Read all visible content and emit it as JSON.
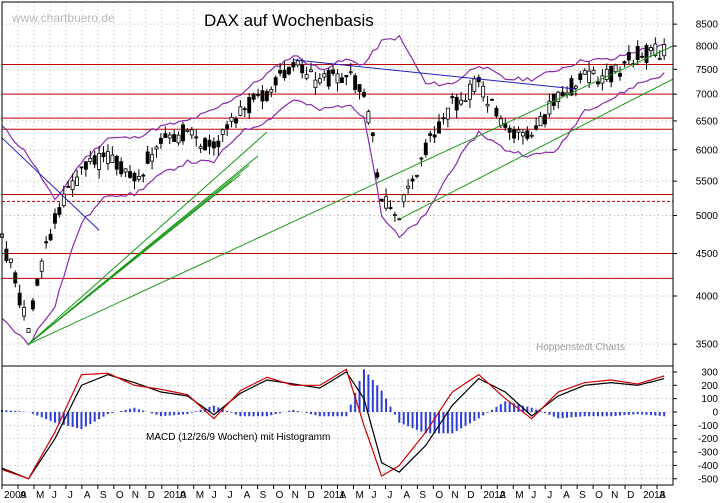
{
  "watermark": "www.chartbuero.de",
  "credit": "Hoppenstedt Charts",
  "chart_data": [
    {
      "type": "candlestick",
      "title": "DAX auf Wochenbasis",
      "y_axis_side": "right",
      "ylim": [
        3300,
        8800
      ],
      "y_ticks": [
        3500,
        4000,
        4500,
        5000,
        5500,
        6000,
        6500,
        7000,
        7500,
        8000,
        8500
      ],
      "y_tick_labels": [
        "3500",
        "4000",
        "4500",
        "5000",
        "5500",
        "6000",
        "6500",
        "7000",
        "7500",
        "8000",
        "8500"
      ],
      "x_labels": [
        "2009",
        "A",
        "M",
        "J",
        "J",
        "A",
        "S",
        "O",
        "N",
        "D",
        "2010",
        "A",
        "M",
        "J",
        "J",
        "A",
        "S",
        "O",
        "N",
        "D",
        "2011",
        "A",
        "M",
        "J",
        "J",
        "A",
        "S",
        "O",
        "N",
        "D",
        "2012",
        "A",
        "M",
        "J",
        "J",
        "A",
        "S",
        "O",
        "N",
        "D",
        "2013",
        "A"
      ],
      "price_path": [
        [
          0,
          4700
        ],
        [
          6,
          3650
        ],
        [
          12,
          5000
        ],
        [
          18,
          5650
        ],
        [
          24,
          5900
        ],
        [
          30,
          5500
        ],
        [
          36,
          6150
        ],
        [
          42,
          6300
        ],
        [
          48,
          6000
        ],
        [
          54,
          6700
        ],
        [
          60,
          7000
        ],
        [
          66,
          7600
        ],
        [
          72,
          7250
        ],
        [
          78,
          7400
        ],
        [
          82,
          7100
        ],
        [
          86,
          5200
        ],
        [
          90,
          5000
        ],
        [
          96,
          6000
        ],
        [
          102,
          6800
        ],
        [
          108,
          7200
        ],
        [
          114,
          6300
        ],
        [
          120,
          6200
        ],
        [
          126,
          7000
        ],
        [
          132,
          7300
        ],
        [
          138,
          7400
        ],
        [
          144,
          7800
        ],
        [
          150,
          7900
        ]
      ],
      "bollinger_upper_path": [
        [
          0,
          6400
        ],
        [
          6,
          5900
        ],
        [
          12,
          5200
        ],
        [
          18,
          5800
        ],
        [
          24,
          6200
        ],
        [
          30,
          6200
        ],
        [
          36,
          6400
        ],
        [
          42,
          6500
        ],
        [
          48,
          6700
        ],
        [
          54,
          7000
        ],
        [
          60,
          7400
        ],
        [
          66,
          7800
        ],
        [
          72,
          7500
        ],
        [
          78,
          7700
        ],
        [
          82,
          7600
        ],
        [
          86,
          8100
        ],
        [
          90,
          8200
        ],
        [
          96,
          7200
        ],
        [
          102,
          7200
        ],
        [
          108,
          7600
        ],
        [
          114,
          7300
        ],
        [
          120,
          7300
        ],
        [
          126,
          7500
        ],
        [
          132,
          7700
        ],
        [
          138,
          7700
        ],
        [
          144,
          7900
        ],
        [
          150,
          8000
        ]
      ],
      "bollinger_lower_path": [
        [
          0,
          3750
        ],
        [
          6,
          3500
        ],
        [
          12,
          3900
        ],
        [
          18,
          4900
        ],
        [
          24,
          5300
        ],
        [
          30,
          5300
        ],
        [
          36,
          5600
        ],
        [
          42,
          5800
        ],
        [
          48,
          5800
        ],
        [
          54,
          6300
        ],
        [
          60,
          6500
        ],
        [
          66,
          6900
        ],
        [
          72,
          6700
        ],
        [
          78,
          6800
        ],
        [
          82,
          6600
        ],
        [
          86,
          5000
        ],
        [
          90,
          4700
        ],
        [
          96,
          5000
        ],
        [
          102,
          5700
        ],
        [
          108,
          6300
        ],
        [
          114,
          6000
        ],
        [
          120,
          5900
        ],
        [
          126,
          6000
        ],
        [
          132,
          6700
        ],
        [
          138,
          6900
        ],
        [
          144,
          7200
        ],
        [
          150,
          7400
        ]
      ],
      "horizontal_lines": [
        7600,
        7000,
        6550,
        6350,
        5300,
        4500,
        4200
      ],
      "dashed_horizontal_lines": [
        5200
      ],
      "trend_lines_green": [
        [
          [
            6,
            3500
          ],
          [
            152,
            8000
          ]
        ],
        [
          [
            6,
            3500
          ],
          [
            60,
            6300
          ]
        ],
        [
          [
            6,
            3500
          ],
          [
            58,
            5900
          ]
        ],
        [
          [
            6,
            3500
          ],
          [
            56,
            5750
          ]
        ],
        [
          [
            6,
            3500
          ],
          [
            54,
            5600
          ]
        ],
        [
          [
            6,
            3500
          ],
          [
            52,
            5500
          ]
        ],
        [
          [
            90,
            4950
          ],
          [
            152,
            7300
          ]
        ]
      ],
      "trend_lines_blue": [
        [
          [
            0,
            6200
          ],
          [
            22,
            4800
          ]
        ],
        [
          [
            66,
            7700
          ],
          [
            130,
            7100
          ]
        ]
      ],
      "colors": {
        "candles": "#000000",
        "bollinger": "#8a2bb0",
        "horizontal": "#c00000",
        "trend_green": "#1a9a1a",
        "trend_blue": "#2020c0"
      }
    },
    {
      "type": "line",
      "label": "MACD (12/26/9 Wochen) mit Histogramm",
      "ylim": [
        -550,
        320
      ],
      "y_ticks": [
        300,
        200,
        100,
        0,
        -100,
        -200,
        -300,
        -400,
        -500
      ],
      "y_tick_labels": [
        "300",
        "200",
        "100",
        "0",
        "-100",
        "-200",
        "-300",
        "-400",
        "-500"
      ],
      "series": [
        {
          "values_path": [
            [
              0,
              -420
            ],
            [
              6,
              -500
            ],
            [
              12,
              -200
            ],
            [
              18,
              200
            ],
            [
              24,
              280
            ],
            [
              30,
              220
            ],
            [
              36,
              150
            ],
            [
              42,
              120
            ],
            [
              48,
              -20
            ],
            [
              54,
              140
            ],
            [
              60,
              240
            ],
            [
              66,
              210
            ],
            [
              72,
              180
            ],
            [
              78,
              300
            ],
            [
              82,
              100
            ],
            [
              86,
              -380
            ],
            [
              90,
              -450
            ],
            [
              96,
              -250
            ],
            [
              102,
              50
            ],
            [
              108,
              250
            ],
            [
              114,
              150
            ],
            [
              120,
              -30
            ],
            [
              126,
              120
            ],
            [
              132,
              200
            ],
            [
              138,
              220
            ],
            [
              144,
              200
            ],
            [
              150,
              250
            ]
          ],
          "color": "#000000"
        },
        {
          "values_path": [
            [
              0,
              -430
            ],
            [
              6,
              -500
            ],
            [
              12,
              -150
            ],
            [
              18,
              280
            ],
            [
              24,
              290
            ],
            [
              30,
              200
            ],
            [
              36,
              170
            ],
            [
              42,
              130
            ],
            [
              48,
              -50
            ],
            [
              54,
              160
            ],
            [
              60,
              260
            ],
            [
              66,
              200
            ],
            [
              72,
              200
            ],
            [
              78,
              320
            ],
            [
              82,
              -100
            ],
            [
              86,
              -480
            ],
            [
              90,
              -400
            ],
            [
              96,
              -150
            ],
            [
              102,
              150
            ],
            [
              108,
              280
            ],
            [
              114,
              100
            ],
            [
              120,
              -50
            ],
            [
              126,
              150
            ],
            [
              132,
              220
            ],
            [
              138,
              240
            ],
            [
              144,
              210
            ],
            [
              150,
              270
            ]
          ],
          "color": "#d00000"
        }
      ],
      "histogram_color": "#2c3ed8"
    }
  ]
}
